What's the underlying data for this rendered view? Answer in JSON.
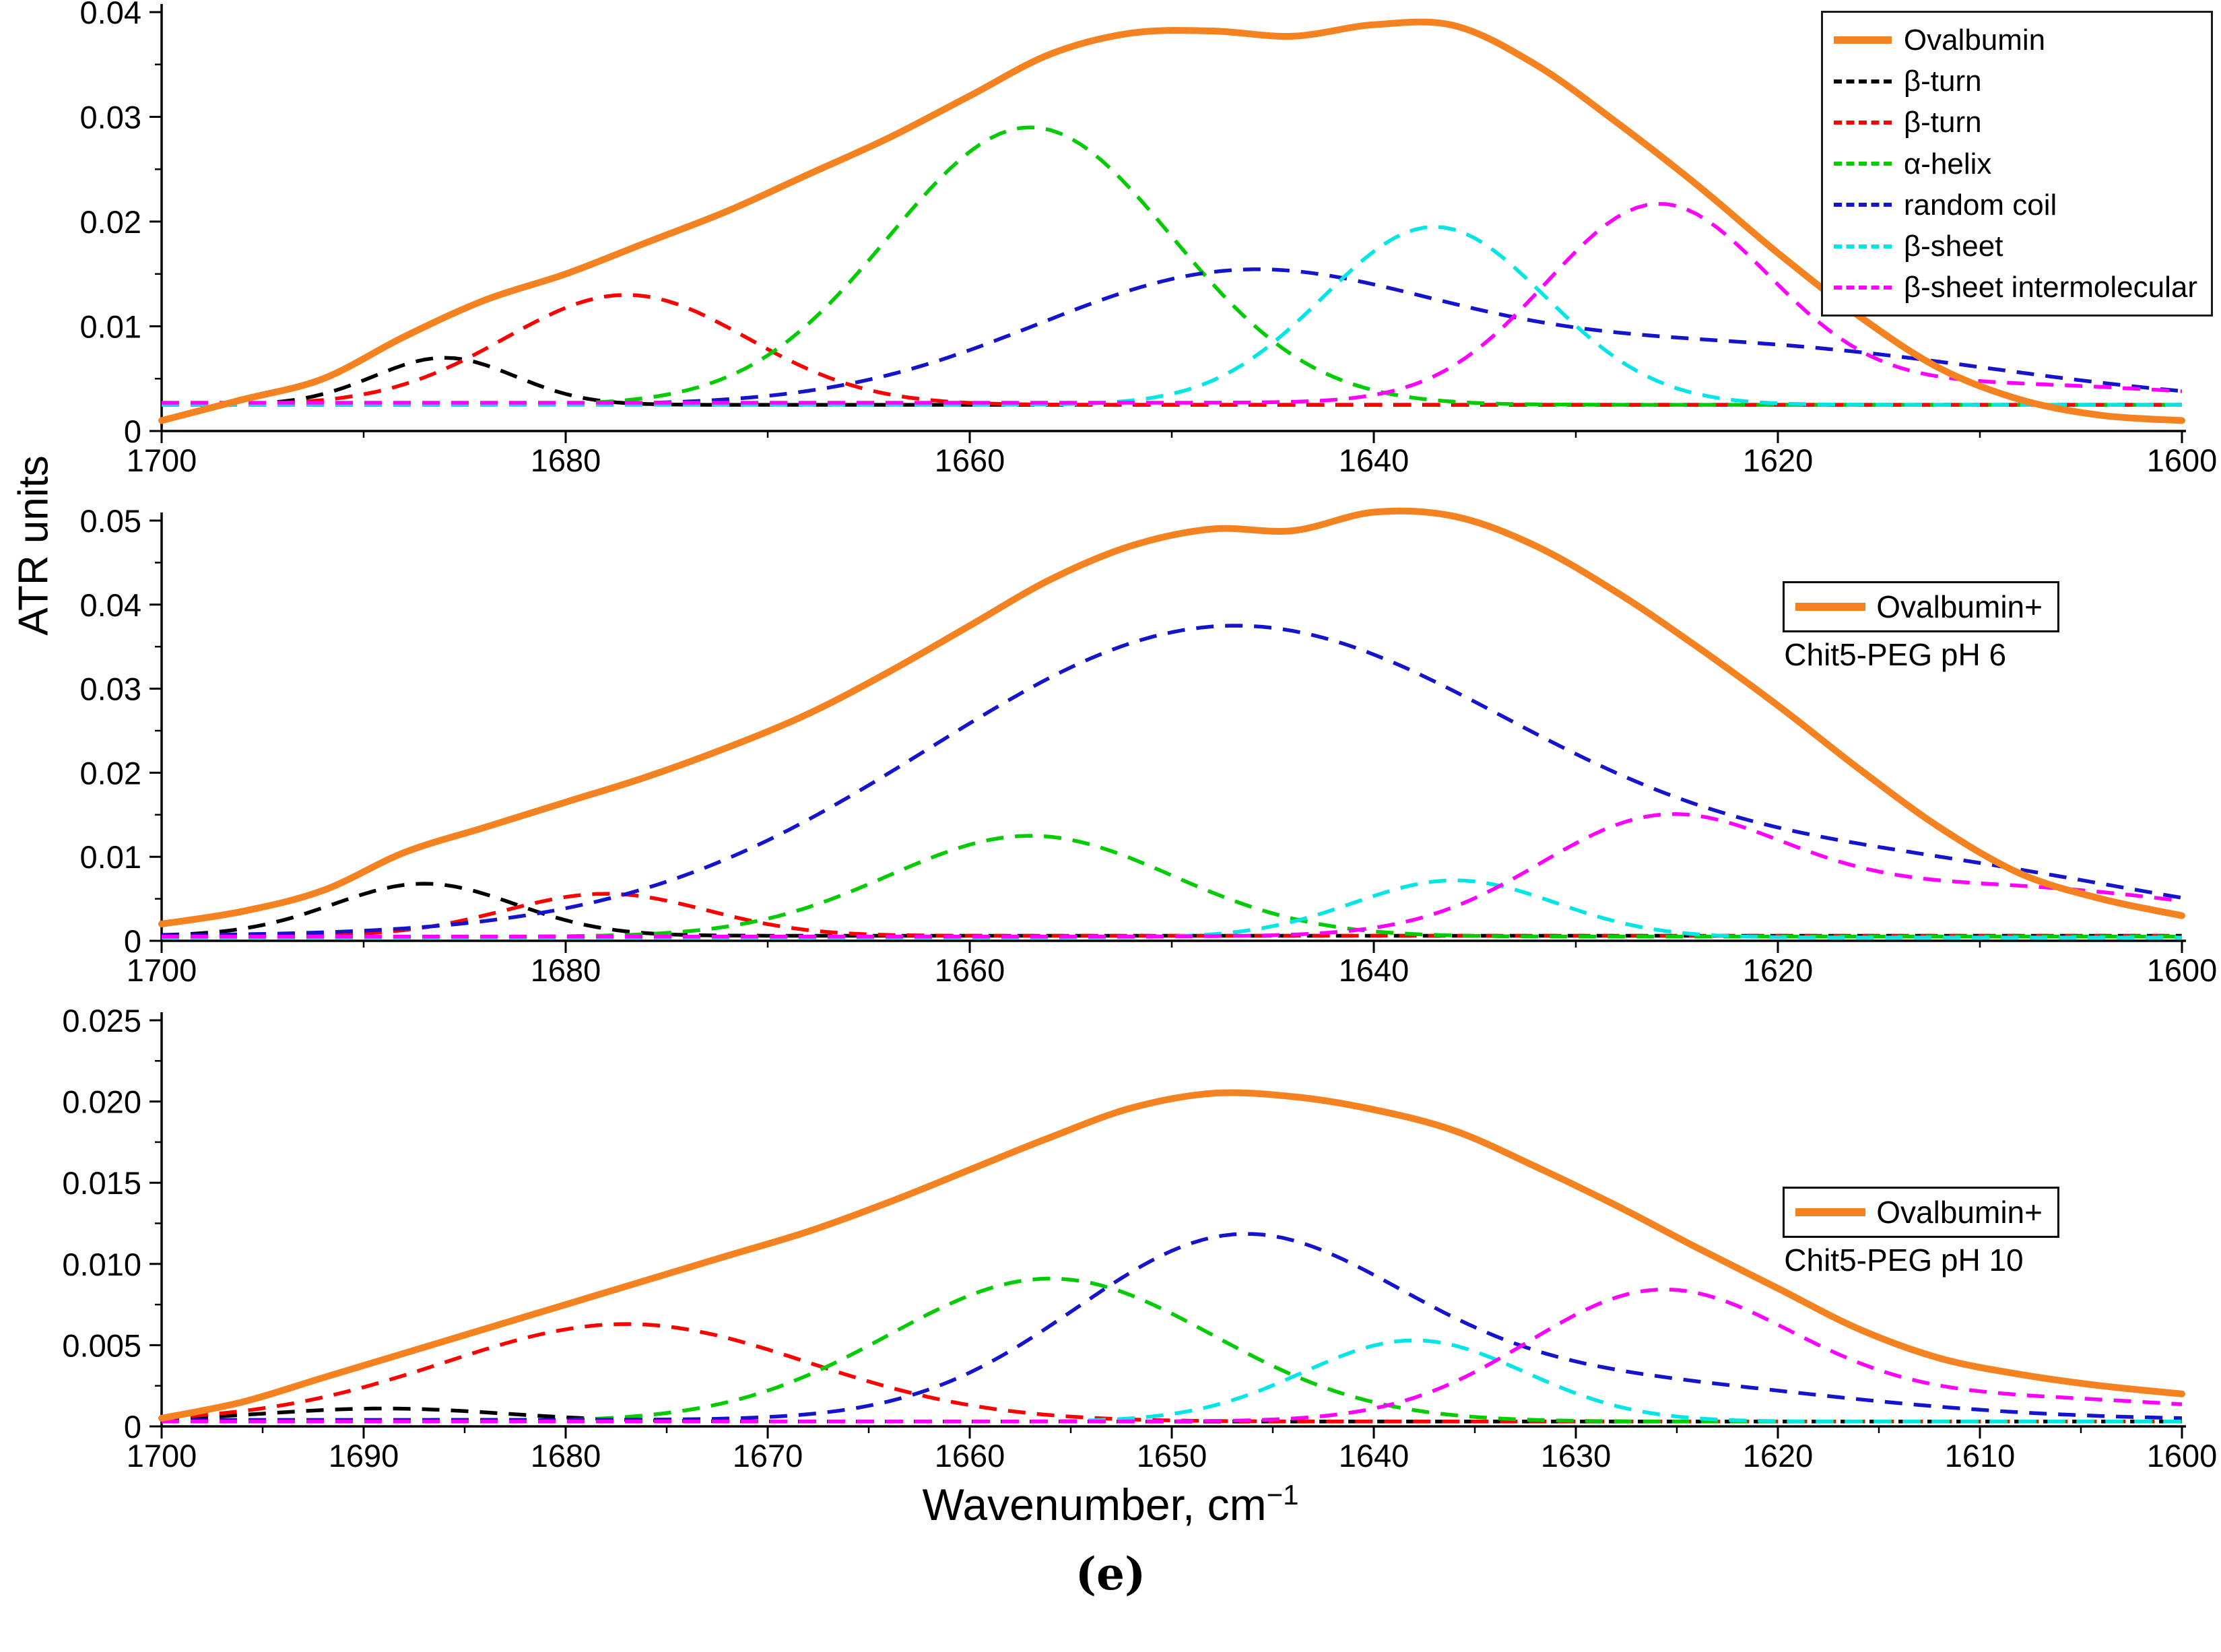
{
  "figure": {
    "ylabel": "ATR units",
    "xlabel": "Wavenumber, cm",
    "xlabel_sup": "−1",
    "caption": "(e)"
  },
  "colors": {
    "orange": "#F58220",
    "black": "#000000",
    "red": "#FF0000",
    "green": "#00CC00",
    "blue": "#1414CC",
    "cyan": "#00E5E5",
    "magenta": "#FF00FF"
  },
  "chart_data": [
    {
      "type": "line",
      "x_range": [
        1700,
        1600
      ],
      "x_reversed": true,
      "ylim": [
        0,
        0.04
      ],
      "y_minor": 0.005,
      "x_minor": 10,
      "yticks": [
        {
          "v": 0,
          "label": "0"
        },
        {
          "v": 0.01,
          "label": "0.01"
        },
        {
          "v": 0.02,
          "label": "0.02"
        },
        {
          "v": 0.03,
          "label": "0.03"
        },
        {
          "v": 0.04,
          "label": "0.04"
        }
      ],
      "xticks": [
        {
          "v": 1700,
          "label": "1700"
        },
        {
          "v": 1680,
          "label": "1680"
        },
        {
          "v": 1660,
          "label": "1660"
        },
        {
          "v": 1640,
          "label": "1640"
        },
        {
          "v": 1620,
          "label": "1620"
        },
        {
          "v": 1600,
          "label": "1600"
        }
      ],
      "legend": {
        "style": "list"
      },
      "series": [
        {
          "name": "Ovalbumin",
          "type": "points",
          "color": "#F58220",
          "dash": false,
          "x": [
            1700,
            1696,
            1692,
            1688,
            1684,
            1680,
            1676,
            1672,
            1668,
            1664,
            1660,
            1656,
            1652,
            1648,
            1644,
            1640,
            1636,
            1632,
            1628,
            1624,
            1620,
            1616,
            1612,
            1608,
            1604,
            1600
          ],
          "y": [
            0.001,
            0.003,
            0.005,
            0.009,
            0.0125,
            0.015,
            0.018,
            0.021,
            0.0245,
            0.028,
            0.032,
            0.036,
            0.038,
            0.0382,
            0.0377,
            0.0388,
            0.0387,
            0.035,
            0.0295,
            0.0235,
            0.017,
            0.011,
            0.006,
            0.003,
            0.0015,
            0.001
          ]
        },
        {
          "name": "β-turn",
          "type": "gaussian",
          "color": "#000000",
          "dash": true,
          "baseline": 0.0025,
          "peaks": [
            {
              "c": 1686,
              "h": 0.0045,
              "s": 3.5
            }
          ]
        },
        {
          "name": "β-turn",
          "type": "gaussian",
          "color": "#FF0000",
          "dash": true,
          "baseline": 0.0025,
          "peaks": [
            {
              "c": 1677,
              "h": 0.0105,
              "s": 6
            }
          ]
        },
        {
          "name": "α-helix",
          "type": "gaussian",
          "color": "#00CC00",
          "dash": true,
          "baseline": 0.0025,
          "peaks": [
            {
              "c": 1657,
              "h": 0.0265,
              "s": 7
            }
          ]
        },
        {
          "name": "random coil",
          "type": "gaussian",
          "color": "#1414CC",
          "dash": true,
          "baseline": 0.0025,
          "peaks": [
            {
              "c": 1647,
              "h": 0.012,
              "s": 10
            },
            {
              "c": 1622,
              "h": 0.0055,
              "s": 13
            }
          ]
        },
        {
          "name": "β-sheet",
          "type": "gaussian",
          "color": "#00E5E5",
          "dash": true,
          "baseline": 0.0025,
          "peaks": [
            {
              "c": 1637,
              "h": 0.017,
              "s": 5.5
            }
          ]
        },
        {
          "name": "β-sheet intermolecular",
          "type": "gaussian",
          "color": "#FF00FF",
          "dash": true,
          "baseline": 0.0027,
          "peaks": [
            {
              "c": 1626,
              "h": 0.0185,
              "s": 5.5
            },
            {
              "c": 1610,
              "h": 0.0018,
              "s": 10
            }
          ]
        }
      ]
    },
    {
      "type": "line",
      "x_range": [
        1700,
        1600
      ],
      "x_reversed": true,
      "ylim": [
        0,
        0.05
      ],
      "y_minor": 0.005,
      "x_minor": 10,
      "yticks": [
        {
          "v": 0,
          "label": "0"
        },
        {
          "v": 0.01,
          "label": "0.01"
        },
        {
          "v": 0.02,
          "label": "0.02"
        },
        {
          "v": 0.03,
          "label": "0.03"
        },
        {
          "v": 0.04,
          "label": "0.04"
        },
        {
          "v": 0.05,
          "label": "0.05"
        }
      ],
      "xticks": [
        {
          "v": 1700,
          "label": "1700"
        },
        {
          "v": 1680,
          "label": "1680"
        },
        {
          "v": 1660,
          "label": "1660"
        },
        {
          "v": 1640,
          "label": "1640"
        },
        {
          "v": 1620,
          "label": "1620"
        },
        {
          "v": 1600,
          "label": "1600"
        }
      ],
      "legend": {
        "style": "box",
        "line_label": "Ovalbumin+",
        "sub_label": "Chit5-PEG pH 6"
      },
      "series": [
        {
          "name": "Ovalbumin",
          "type": "points",
          "color": "#F58220",
          "dash": false,
          "x": [
            1700,
            1696,
            1692,
            1688,
            1684,
            1680,
            1676,
            1672,
            1668,
            1664,
            1660,
            1656,
            1652,
            1648,
            1644,
            1640,
            1636,
            1632,
            1628,
            1624,
            1620,
            1616,
            1612,
            1608,
            1604,
            1600
          ],
          "y": [
            0.002,
            0.0035,
            0.006,
            0.0105,
            0.0135,
            0.0165,
            0.0195,
            0.023,
            0.027,
            0.032,
            0.0375,
            0.043,
            0.047,
            0.049,
            0.0488,
            0.051,
            0.0505,
            0.047,
            0.0415,
            0.035,
            0.028,
            0.0205,
            0.0135,
            0.008,
            0.005,
            0.003
          ]
        },
        {
          "name": "β-turn",
          "type": "gaussian",
          "color": "#000000",
          "dash": true,
          "baseline": 0.0006,
          "peaks": [
            {
              "c": 1687,
              "h": 0.0062,
              "s": 4.5
            }
          ]
        },
        {
          "name": "β-turn",
          "type": "gaussian",
          "color": "#FF0000",
          "dash": true,
          "baseline": 0.0006,
          "peaks": [
            {
              "c": 1678,
              "h": 0.005,
              "s": 5
            }
          ]
        },
        {
          "name": "α-helix",
          "type": "gaussian",
          "color": "#00CC00",
          "dash": true,
          "baseline": 0.0005,
          "peaks": [
            {
              "c": 1657,
              "h": 0.012,
              "s": 7
            }
          ]
        },
        {
          "name": "random coil",
          "type": "gaussian",
          "color": "#1414CC",
          "dash": true,
          "baseline": 0.0006,
          "peaks": [
            {
              "c": 1647,
              "h": 0.0368,
              "s": 15
            },
            {
              "c": 1612,
              "h": 0.007,
              "s": 12
            }
          ]
        },
        {
          "name": "β-sheet",
          "type": "gaussian",
          "color": "#00E5E5",
          "dash": true,
          "baseline": 0.0004,
          "peaks": [
            {
              "c": 1636,
              "h": 0.0068,
              "s": 5
            }
          ]
        },
        {
          "name": "β-sheet intermolecular",
          "type": "gaussian",
          "color": "#FF00FF",
          "dash": true,
          "baseline": 0.0005,
          "peaks": [
            {
              "c": 1626,
              "h": 0.012,
              "s": 6
            },
            {
              "c": 1610,
              "h": 0.006,
              "s": 12
            }
          ]
        }
      ]
    },
    {
      "type": "line",
      "x_range": [
        1700,
        1600
      ],
      "x_reversed": true,
      "ylim": [
        0,
        0.025
      ],
      "y_minor": 0.0025,
      "x_minor": 5,
      "yticks": [
        {
          "v": 0,
          "label": "0"
        },
        {
          "v": 0.005,
          "label": "0.005"
        },
        {
          "v": 0.01,
          "label": "0.010"
        },
        {
          "v": 0.015,
          "label": "0.015"
        },
        {
          "v": 0.02,
          "label": "0.020"
        },
        {
          "v": 0.025,
          "label": "0.025"
        }
      ],
      "xticks": [
        {
          "v": 1700,
          "label": "1700"
        },
        {
          "v": 1690,
          "label": "1690"
        },
        {
          "v": 1680,
          "label": "1680"
        },
        {
          "v": 1670,
          "label": "1670"
        },
        {
          "v": 1660,
          "label": "1660"
        },
        {
          "v": 1650,
          "label": "1650"
        },
        {
          "v": 1640,
          "label": "1640"
        },
        {
          "v": 1630,
          "label": "1630"
        },
        {
          "v": 1620,
          "label": "1620"
        },
        {
          "v": 1610,
          "label": "1610"
        },
        {
          "v": 1600,
          "label": "1600"
        }
      ],
      "legend": {
        "style": "box",
        "line_label": "Ovalbumin+",
        "sub_label": "Chit5-PEG pH 10"
      },
      "series": [
        {
          "name": "Ovalbumin",
          "type": "points",
          "color": "#F58220",
          "dash": false,
          "x": [
            1700,
            1696,
            1692,
            1688,
            1684,
            1680,
            1676,
            1672,
            1668,
            1664,
            1660,
            1656,
            1652,
            1648,
            1644,
            1640,
            1636,
            1632,
            1628,
            1624,
            1620,
            1616,
            1612,
            1608,
            1604,
            1600
          ],
          "y": [
            0.0005,
            0.0015,
            0.003,
            0.0045,
            0.006,
            0.0075,
            0.009,
            0.0105,
            0.012,
            0.0138,
            0.0158,
            0.0178,
            0.0196,
            0.0205,
            0.0203,
            0.0195,
            0.0182,
            0.016,
            0.0136,
            0.011,
            0.0085,
            0.006,
            0.0042,
            0.0032,
            0.0025,
            0.002
          ]
        },
        {
          "name": "β-turn",
          "type": "gaussian",
          "color": "#000000",
          "dash": true,
          "baseline": 0.0003,
          "peaks": [
            {
              "c": 1689,
              "h": 0.0008,
              "s": 6
            }
          ]
        },
        {
          "name": "β-turn",
          "type": "gaussian",
          "color": "#FF0000",
          "dash": true,
          "baseline": 0.0003,
          "peaks": [
            {
              "c": 1677,
              "h": 0.006,
              "s": 9
            }
          ]
        },
        {
          "name": "α-helix",
          "type": "gaussian",
          "color": "#00CC00",
          "dash": true,
          "baseline": 0.0003,
          "peaks": [
            {
              "c": 1656,
              "h": 0.0088,
              "s": 8
            }
          ]
        },
        {
          "name": "random coil",
          "type": "gaussian",
          "color": "#1414CC",
          "dash": true,
          "baseline": 0.0004,
          "peaks": [
            {
              "c": 1647,
              "h": 0.0105,
              "s": 8
            },
            {
              "c": 1630,
              "h": 0.0025,
              "s": 12
            }
          ]
        },
        {
          "name": "β-sheet",
          "type": "gaussian",
          "color": "#00E5E5",
          "dash": true,
          "baseline": 0.0003,
          "peaks": [
            {
              "c": 1638,
              "h": 0.005,
              "s": 5.5
            }
          ]
        },
        {
          "name": "β-sheet intermolecular",
          "type": "gaussian",
          "color": "#FF00FF",
          "dash": true,
          "baseline": 0.0003,
          "peaks": [
            {
              "c": 1626,
              "h": 0.0075,
              "s": 6.5
            },
            {
              "c": 1610,
              "h": 0.0015,
              "s": 12
            }
          ]
        }
      ]
    }
  ]
}
